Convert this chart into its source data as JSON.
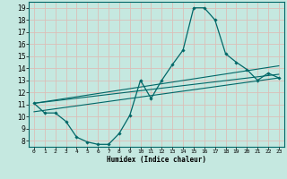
{
  "title": "",
  "xlabel": "Humidex (Indice chaleur)",
  "ylabel": "",
  "background_color": "#c5e8e0",
  "grid_color": "#dbbfb8",
  "line_color": "#006868",
  "xlim": [
    -0.5,
    23.5
  ],
  "ylim": [
    7.5,
    19.5
  ],
  "xticks": [
    0,
    1,
    2,
    3,
    4,
    5,
    6,
    7,
    8,
    9,
    10,
    11,
    12,
    13,
    14,
    15,
    16,
    17,
    18,
    19,
    20,
    21,
    22,
    23
  ],
  "yticks": [
    8,
    9,
    10,
    11,
    12,
    13,
    14,
    15,
    16,
    17,
    18,
    19
  ],
  "main_x": [
    0,
    1,
    2,
    3,
    4,
    5,
    6,
    7,
    8,
    9,
    10,
    11,
    12,
    13,
    14,
    15,
    16,
    17,
    18,
    19,
    20,
    21,
    22,
    23
  ],
  "main_y": [
    11.1,
    10.3,
    10.3,
    9.6,
    8.3,
    7.9,
    7.7,
    7.7,
    8.6,
    10.1,
    13.0,
    11.5,
    13.0,
    14.3,
    15.5,
    19.0,
    19.0,
    18.0,
    15.2,
    14.5,
    13.9,
    13.0,
    13.6,
    13.2
  ],
  "line2_x": [
    0,
    23
  ],
  "line2_y": [
    11.1,
    14.2
  ],
  "line3_x": [
    0,
    23
  ],
  "line3_y": [
    11.1,
    13.5
  ],
  "line4_x": [
    0,
    23
  ],
  "line4_y": [
    10.4,
    13.2
  ]
}
